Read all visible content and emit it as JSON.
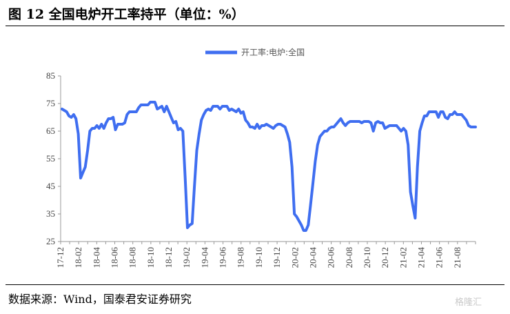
{
  "title": "图 12 全国电炉开工率持平（单位：%）",
  "source": "数据来源：Wind，国泰君安证券研究",
  "watermark": "格隆汇",
  "chart_data": {
    "type": "line",
    "title": "图 12 全国电炉开工率持平（单位：%）",
    "xlabel": "",
    "ylabel": "",
    "ylim": [
      25,
      85
    ],
    "yticks": [
      25,
      35,
      45,
      55,
      65,
      75,
      85
    ],
    "x_tick_labels": [
      "17-12",
      "18-02",
      "18-04",
      "18-06",
      "18-08",
      "18-10",
      "18-12",
      "19-02",
      "19-04",
      "19-06",
      "19-08",
      "19-10",
      "19-12",
      "20-02",
      "20-04",
      "20-06",
      "20-08",
      "20-10",
      "20-12",
      "21-02",
      "21-04",
      "21-06",
      "21-08"
    ],
    "grid": false,
    "legend": "top-center",
    "line_color": "#3f6ef0",
    "series": [
      {
        "name": "开工率:电炉:全国",
        "values": [
          73.0,
          72.5,
          72.0,
          70.5,
          70.0,
          71.0,
          69.5,
          64.0,
          48.0,
          50.0,
          52.0,
          58.0,
          65.0,
          66.0,
          66.0,
          67.0,
          66.0,
          67.5,
          66.0,
          68.0,
          69.5,
          69.5,
          70.0,
          65.5,
          67.5,
          67.5,
          67.5,
          68.0,
          71.0,
          72.0,
          72.0,
          72.0,
          72.0,
          73.5,
          74.5,
          74.5,
          74.5,
          74.5,
          75.5,
          75.5,
          75.5,
          73.0,
          73.5,
          74.0,
          72.0,
          74.0,
          72.0,
          70.0,
          68.0,
          68.5,
          65.5,
          66.0,
          65.0,
          48.0,
          30.0,
          31.0,
          31.5,
          45.0,
          58.0,
          64.0,
          69.0,
          71.0,
          72.5,
          73.0,
          72.5,
          74.0,
          74.0,
          74.0,
          73.0,
          74.0,
          74.0,
          74.0,
          72.5,
          73.0,
          72.5,
          72.0,
          73.0,
          71.5,
          72.0,
          69.0,
          68.0,
          66.5,
          66.5,
          66.0,
          67.5,
          66.0,
          67.0,
          67.0,
          67.5,
          67.0,
          66.5,
          66.0,
          67.0,
          67.5,
          67.5,
          67.0,
          66.5,
          64.0,
          61.0,
          52.0,
          35.0,
          34.0,
          32.5,
          31.0,
          29.0,
          29.0,
          31.0,
          38.5,
          46.0,
          54.0,
          60.0,
          63.0,
          64.0,
          65.0,
          65.0,
          66.0,
          66.5,
          66.5,
          67.5,
          68.5,
          69.5,
          68.0,
          67.0,
          68.0,
          68.5,
          68.5,
          68.5,
          68.5,
          68.5,
          68.0,
          68.5,
          68.5,
          68.5,
          68.0,
          65.0,
          68.0,
          68.5,
          68.0,
          68.0,
          66.0,
          66.5,
          67.0,
          67.0,
          67.0,
          67.0,
          66.0,
          65.0,
          66.0,
          65.0,
          60.0,
          43.0,
          38.0,
          33.5,
          52.0,
          65.0,
          68.0,
          70.5,
          70.5,
          72.0,
          72.0,
          72.0,
          72.0,
          70.0,
          72.0,
          72.0,
          70.0,
          69.5,
          71.0,
          71.0,
          72.0,
          71.0,
          71.0,
          71.0,
          70.0,
          69.0,
          67.0,
          66.5,
          66.5,
          66.5
        ]
      }
    ]
  }
}
